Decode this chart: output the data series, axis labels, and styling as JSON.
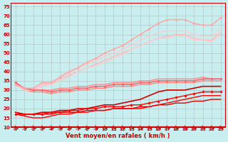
{
  "xlabel": "Vent moyen/en rafales ( km/h )",
  "background_color": "#c8eef0",
  "grid_color": "#b0b0b0",
  "xlim": [
    -0.5,
    23.5
  ],
  "ylim": [
    10,
    77
  ],
  "yticks": [
    10,
    15,
    20,
    25,
    30,
    35,
    40,
    45,
    50,
    55,
    60,
    65,
    70,
    75
  ],
  "xticks": [
    0,
    1,
    2,
    3,
    4,
    5,
    6,
    7,
    8,
    9,
    10,
    11,
    12,
    13,
    14,
    15,
    16,
    17,
    18,
    19,
    20,
    21,
    22,
    23
  ],
  "series": [
    {
      "x": [
        0,
        1,
        2,
        3,
        4,
        5,
        6,
        7,
        8,
        9,
        10,
        11,
        12,
        13,
        14,
        15,
        16,
        17,
        18,
        19,
        20,
        21,
        22,
        23
      ],
      "y": [
        17,
        17,
        17,
        17,
        17,
        18,
        18,
        18,
        19,
        19,
        19,
        20,
        20,
        20,
        21,
        21,
        22,
        22,
        23,
        23,
        24,
        24,
        25,
        25
      ],
      "color": "#dd0000",
      "lw": 1.0,
      "marker": null,
      "ms": 0
    },
    {
      "x": [
        0,
        1,
        2,
        3,
        4,
        5,
        6,
        7,
        8,
        9,
        10,
        11,
        12,
        13,
        14,
        15,
        16,
        17,
        18,
        19,
        20,
        21,
        22,
        23
      ],
      "y": [
        17,
        17,
        17,
        17,
        18,
        18,
        19,
        19,
        20,
        20,
        21,
        21,
        21,
        22,
        22,
        23,
        24,
        25,
        26,
        27,
        28,
        29,
        29,
        29
      ],
      "color": "#ff0000",
      "lw": 1.0,
      "marker": "D",
      "ms": 1.8
    },
    {
      "x": [
        0,
        1,
        2,
        3,
        4,
        5,
        6,
        7,
        8,
        9,
        10,
        11,
        12,
        13,
        14,
        15,
        16,
        17,
        18,
        19,
        20,
        21,
        22,
        23
      ],
      "y": [
        17,
        16,
        15,
        15,
        16,
        17,
        17,
        18,
        18,
        19,
        19,
        20,
        20,
        20,
        20,
        21,
        22,
        23,
        24,
        25,
        26,
        27,
        27,
        27
      ],
      "color": "#ff0000",
      "lw": 1.0,
      "marker": null,
      "ms": 0
    },
    {
      "x": [
        0,
        1,
        2,
        3,
        4,
        5,
        6,
        7,
        8,
        9,
        10,
        11,
        12,
        13,
        14,
        15,
        16,
        17,
        18,
        19,
        20,
        21,
        22,
        23
      ],
      "y": [
        18,
        17,
        17,
        18,
        18,
        19,
        19,
        20,
        20,
        21,
        22,
        22,
        23,
        24,
        25,
        27,
        29,
        30,
        30,
        30,
        31,
        32,
        32,
        32
      ],
      "color": "#cc0000",
      "lw": 1.2,
      "marker": null,
      "ms": 0
    },
    {
      "x": [
        0,
        1,
        2,
        3,
        4,
        5,
        6,
        7,
        8,
        9,
        10,
        11,
        12,
        13,
        14,
        15,
        16,
        17,
        18,
        19,
        20,
        21,
        22,
        23
      ],
      "y": [
        34,
        31,
        30,
        30,
        29,
        30,
        30,
        31,
        31,
        32,
        32,
        33,
        33,
        33,
        34,
        34,
        35,
        35,
        35,
        35,
        35,
        36,
        36,
        36
      ],
      "color": "#ff6666",
      "lw": 1.2,
      "marker": "D",
      "ms": 1.8
    },
    {
      "x": [
        0,
        1,
        2,
        3,
        4,
        5,
        6,
        7,
        8,
        9,
        10,
        11,
        12,
        13,
        14,
        15,
        16,
        17,
        18,
        19,
        20,
        21,
        22,
        23
      ],
      "y": [
        34,
        31,
        30,
        30,
        30,
        31,
        31,
        32,
        32,
        33,
        33,
        34,
        34,
        34,
        35,
        35,
        36,
        36,
        36,
        36,
        36,
        37,
        36,
        36
      ],
      "color": "#ff8888",
      "lw": 1.0,
      "marker": null,
      "ms": 0
    },
    {
      "x": [
        0,
        1,
        2,
        3,
        4,
        5,
        6,
        7,
        8,
        9,
        10,
        11,
        12,
        13,
        14,
        15,
        16,
        17,
        18,
        19,
        20,
        21,
        22,
        23
      ],
      "y": [
        33,
        30,
        29,
        29,
        28,
        29,
        29,
        30,
        30,
        31,
        31,
        32,
        32,
        32,
        33,
        33,
        34,
        34,
        34,
        34,
        34,
        35,
        35,
        35
      ],
      "color": "#ff8888",
      "lw": 1.0,
      "marker": null,
      "ms": 0
    },
    {
      "x": [
        0,
        1,
        2,
        3,
        4,
        5,
        6,
        7,
        8,
        9,
        10,
        11,
        12,
        13,
        14,
        15,
        16,
        17,
        18,
        19,
        20,
        21,
        22,
        23
      ],
      "y": [
        33,
        30,
        30,
        33,
        33,
        36,
        38,
        40,
        42,
        44,
        46,
        48,
        50,
        52,
        54,
        56,
        58,
        59,
        60,
        60,
        58,
        57,
        57,
        61
      ],
      "color": "#ffbbbb",
      "lw": 1.0,
      "marker": null,
      "ms": 0
    },
    {
      "x": [
        0,
        1,
        2,
        3,
        4,
        5,
        6,
        7,
        8,
        9,
        10,
        11,
        12,
        13,
        14,
        15,
        16,
        17,
        18,
        19,
        20,
        21,
        22,
        23
      ],
      "y": [
        33,
        30,
        30,
        33,
        34,
        37,
        39,
        42,
        44,
        46,
        48,
        50,
        52,
        54,
        57,
        59,
        61,
        62,
        62,
        62,
        60,
        59,
        59,
        63
      ],
      "color": "#ffcccc",
      "lw": 1.0,
      "marker": null,
      "ms": 0
    },
    {
      "x": [
        0,
        1,
        2,
        3,
        4,
        5,
        6,
        7,
        8,
        9,
        10,
        11,
        12,
        13,
        14,
        15,
        16,
        17,
        18,
        19,
        20,
        21,
        22,
        23
      ],
      "y": [
        33,
        30,
        30,
        32,
        33,
        35,
        37,
        40,
        42,
        43,
        45,
        47,
        49,
        52,
        54,
        56,
        58,
        58,
        59,
        59,
        57,
        57,
        56,
        60
      ],
      "color": "#ffcccc",
      "lw": 1.0,
      "marker": null,
      "ms": 0
    },
    {
      "x": [
        0,
        1,
        2,
        3,
        4,
        5,
        6,
        7,
        8,
        9,
        10,
        11,
        12,
        13,
        14,
        15,
        16,
        17,
        18,
        19,
        20,
        21,
        22,
        23
      ],
      "y": [
        33,
        31,
        31,
        34,
        34,
        37,
        40,
        42,
        45,
        47,
        50,
        52,
        54,
        57,
        60,
        63,
        66,
        68,
        68,
        68,
        66,
        65,
        65,
        69
      ],
      "color": "#ffaaaa",
      "lw": 1.2,
      "marker": "D",
      "ms": 1.8
    }
  ]
}
